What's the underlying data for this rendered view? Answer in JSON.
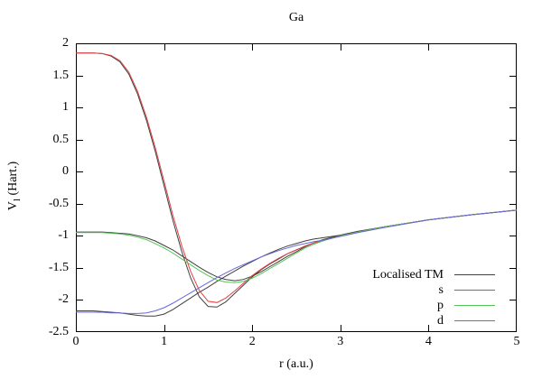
{
  "title": "Ga",
  "axes": {
    "x": {
      "label": "r (a.u.)",
      "min": 0,
      "max": 5,
      "ticks": [
        0,
        1,
        2,
        3,
        4,
        5
      ]
    },
    "y": {
      "label_base": "V",
      "label_sub": "l",
      "label_rest": " (Hart.)",
      "min": -2.5,
      "max": 2,
      "ticks": [
        2,
        1.5,
        1,
        0.5,
        0,
        -0.5,
        -1,
        -1.5,
        -2,
        -2.5
      ]
    }
  },
  "legend": [
    {
      "label": "Localised TM",
      "color": "#404040"
    },
    {
      "label": "s",
      "color": "#e04040"
    },
    {
      "label": "p",
      "color": "#55c555"
    },
    {
      "label": "d",
      "color": "#6868da"
    }
  ],
  "colors": {
    "frame": "#000000",
    "background": "#ffffff"
  },
  "chart_data": {
    "type": "line",
    "title": "Ga",
    "xlabel": "r (a.u.)",
    "ylabel": "V_l (Hart.)",
    "xlim": [
      0,
      5
    ],
    "ylim": [
      -2.5,
      2
    ],
    "grid": false,
    "legend_position": "bottom-right inside",
    "note": "Ga pseudopotential channels; Localised TM drawn once per l-channel (3 black curves); all curves merge onto the -3/r Coulomb tail near r=2.8",
    "x": [
      0,
      0.1,
      0.2,
      0.3,
      0.4,
      0.5,
      0.6,
      0.7,
      0.8,
      0.9,
      1.0,
      1.1,
      1.2,
      1.3,
      1.4,
      1.5,
      1.6,
      1.7,
      1.8,
      1.9,
      2.0,
      2.1,
      2.2,
      2.3,
      2.4,
      2.5,
      2.6,
      2.7,
      2.8,
      3.0,
      3.2,
      3.5,
      4.0,
      4.5,
      5.0
    ],
    "series": [
      {
        "name": "Localised TM (s channel)",
        "legend": "Localised TM",
        "color": "#404040",
        "values": [
          1.85,
          1.85,
          1.85,
          1.84,
          1.8,
          1.71,
          1.52,
          1.21,
          0.8,
          0.32,
          -0.22,
          -0.76,
          -1.24,
          -1.65,
          -1.95,
          -2.1,
          -2.11,
          -2.03,
          -1.9,
          -1.77,
          -1.64,
          -1.53,
          -1.44,
          -1.36,
          -1.28,
          -1.22,
          -1.16,
          -1.11,
          -1.07,
          -1.0,
          -0.94,
          -0.86,
          -0.75,
          -0.67,
          -0.6
        ]
      },
      {
        "name": "Localised TM (p channel)",
        "legend": "Localised TM",
        "color": "#404040",
        "values": [
          -0.94,
          -0.94,
          -0.94,
          -0.94,
          -0.95,
          -0.96,
          -0.97,
          -1.0,
          -1.03,
          -1.08,
          -1.15,
          -1.22,
          -1.31,
          -1.4,
          -1.49,
          -1.57,
          -1.64,
          -1.68,
          -1.7,
          -1.68,
          -1.63,
          -1.56,
          -1.48,
          -1.4,
          -1.32,
          -1.25,
          -1.17,
          -1.11,
          -1.06,
          -0.99,
          -0.93,
          -0.86,
          -0.75,
          -0.67,
          -0.6
        ]
      },
      {
        "name": "Localised TM (d channel)",
        "legend": "Localised TM",
        "color": "#404040",
        "values": [
          -2.17,
          -2.17,
          -2.17,
          -2.18,
          -2.19,
          -2.2,
          -2.22,
          -2.24,
          -2.25,
          -2.25,
          -2.22,
          -2.15,
          -2.06,
          -1.97,
          -1.88,
          -1.8,
          -1.71,
          -1.63,
          -1.55,
          -1.47,
          -1.4,
          -1.33,
          -1.27,
          -1.21,
          -1.16,
          -1.12,
          -1.08,
          -1.05,
          -1.03,
          -0.99,
          -0.93,
          -0.86,
          -0.75,
          -0.67,
          -0.6
        ]
      },
      {
        "name": "s",
        "legend": "s",
        "color": "#e04040",
        "values": [
          1.85,
          1.85,
          1.85,
          1.84,
          1.81,
          1.73,
          1.55,
          1.25,
          0.85,
          0.38,
          -0.15,
          -0.68,
          -1.15,
          -1.55,
          -1.85,
          -2.02,
          -2.04,
          -1.97,
          -1.86,
          -1.74,
          -1.62,
          -1.52,
          -1.43,
          -1.35,
          -1.28,
          -1.22,
          -1.16,
          -1.11,
          -1.07,
          -1.0,
          -0.94,
          -0.86,
          -0.75,
          -0.67,
          -0.6
        ]
      },
      {
        "name": "p",
        "legend": "p",
        "color": "#55c555",
        "values": [
          -0.95,
          -0.95,
          -0.95,
          -0.95,
          -0.96,
          -0.97,
          -0.99,
          -1.02,
          -1.06,
          -1.12,
          -1.19,
          -1.27,
          -1.36,
          -1.45,
          -1.54,
          -1.62,
          -1.69,
          -1.72,
          -1.73,
          -1.71,
          -1.66,
          -1.59,
          -1.51,
          -1.43,
          -1.35,
          -1.27,
          -1.19,
          -1.13,
          -1.08,
          -1.0,
          -0.94,
          -0.86,
          -0.75,
          -0.67,
          -0.6
        ]
      },
      {
        "name": "d",
        "legend": "d",
        "color": "#6868da",
        "values": [
          -2.19,
          -2.19,
          -2.19,
          -2.19,
          -2.2,
          -2.2,
          -2.21,
          -2.21,
          -2.2,
          -2.17,
          -2.12,
          -2.05,
          -1.97,
          -1.89,
          -1.81,
          -1.73,
          -1.65,
          -1.58,
          -1.51,
          -1.45,
          -1.39,
          -1.33,
          -1.28,
          -1.23,
          -1.19,
          -1.15,
          -1.12,
          -1.09,
          -1.07,
          -1.01,
          -0.95,
          -0.87,
          -0.75,
          -0.67,
          -0.6
        ]
      }
    ]
  }
}
